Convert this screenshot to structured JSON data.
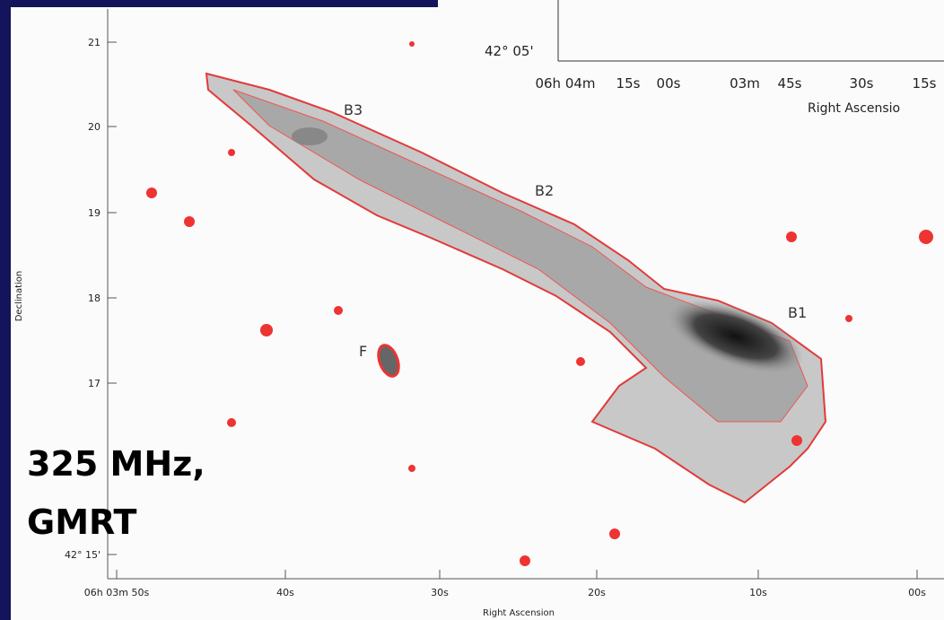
{
  "inset": {
    "dec_label": "42° 05'",
    "ra_labels": [
      "06h 04m",
      "15s",
      "00s",
      "03m",
      "45s",
      "30s",
      "15s"
    ],
    "x_axis_label": "Right Ascensio"
  },
  "main": {
    "y_tick_labels": [
      "21",
      "20",
      "19",
      "18",
      "17",
      "42° 15'"
    ],
    "x_tick_labels": [
      "06h 03m 50s",
      "40s",
      "30s",
      "20s",
      "10s",
      "00s"
    ],
    "x_axis_label": "Right Ascension",
    "y_axis_label": "Declination",
    "source_labels": [
      "B3",
      "B2",
      "B1",
      "F"
    ]
  },
  "caption": [
    "325 MHz,",
    "GMRT"
  ]
}
